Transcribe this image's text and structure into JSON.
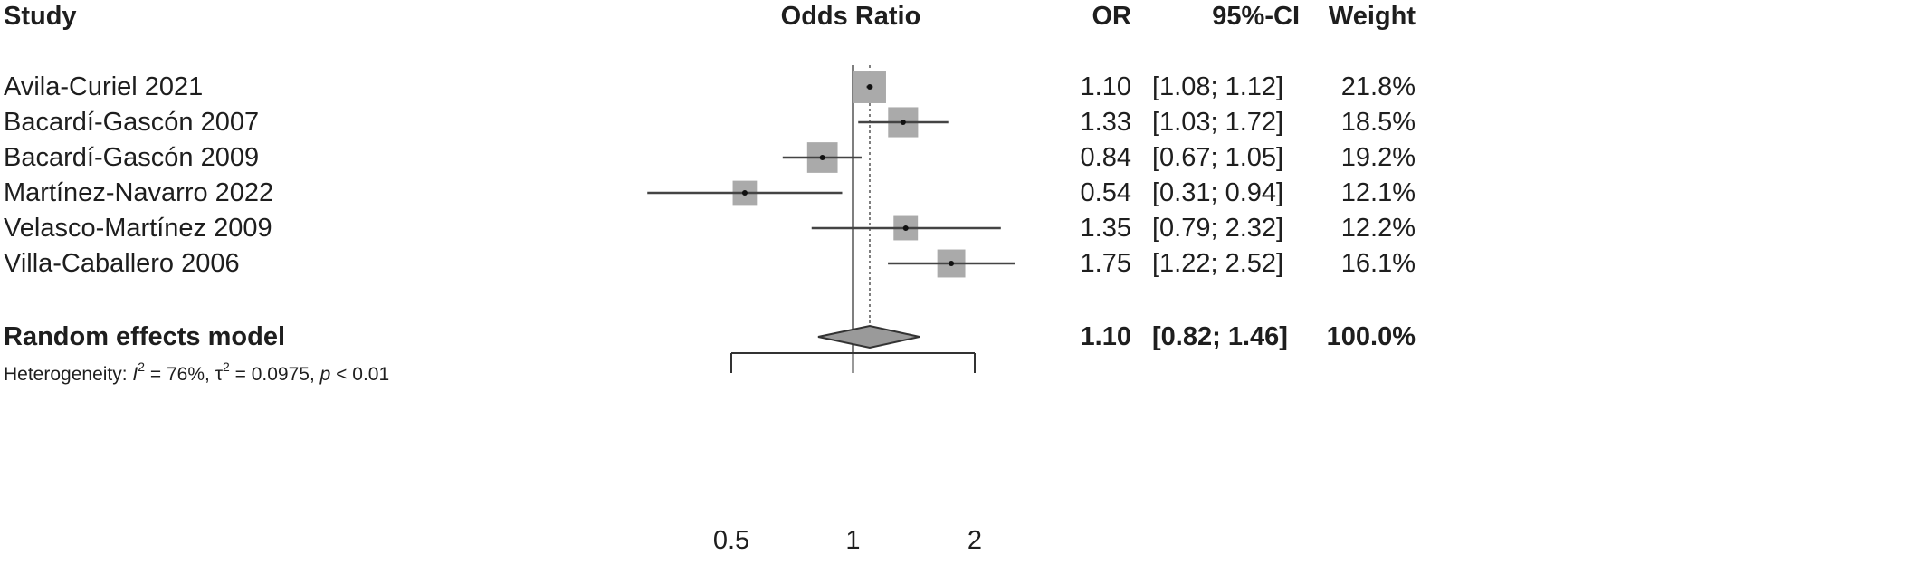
{
  "chart_data": {
    "type": "forest",
    "headers": {
      "study": "Study",
      "plot": "Odds Ratio",
      "or": "OR",
      "ci": "95%-CI",
      "weight": "Weight"
    },
    "categories": [
      "Avila-Curiel 2021",
      "Bacardí-Gascón 2007",
      "Bacardí-Gascón 2009",
      "Martínez-Navarro 2022",
      "Velasco-Martínez 2009",
      "Villa-Caballero 2006"
    ],
    "values": [
      1.1,
      1.33,
      0.84,
      0.54,
      1.35,
      1.75
    ],
    "value_labels": [
      "1.10",
      "1.33",
      "0.84",
      "0.54",
      "1.35",
      "1.75"
    ],
    "lower": [
      1.08,
      1.03,
      0.67,
      0.31,
      0.79,
      1.22
    ],
    "upper": [
      1.12,
      1.72,
      1.05,
      0.94,
      2.32,
      2.52
    ],
    "ci_labels": [
      "[1.08; 1.12]",
      "[1.03; 1.72]",
      "[0.67; 1.05]",
      "[0.31; 0.94]",
      "[0.79; 2.32]",
      "[1.22; 2.52]"
    ],
    "weights": [
      21.8,
      18.5,
      19.2,
      12.1,
      12.2,
      16.1
    ],
    "weight_labels": [
      "21.8%",
      "18.5%",
      "19.2%",
      "12.1%",
      "12.2%",
      "16.1%"
    ],
    "pooled": {
      "name": "Random effects model",
      "value": 1.1,
      "value_label": "1.10",
      "lower": 0.82,
      "upper": 1.46,
      "ci_label": "[0.82; 1.46]",
      "weight": 100,
      "weight_label": "100.0%"
    },
    "heterogeneity": [
      "Heterogeneity: ",
      "I",
      "2",
      " = 76%, τ",
      "2",
      " = 0.0975, ",
      "p",
      " < 0.01"
    ],
    "xlim": [
      0.5,
      2
    ],
    "xticks": [
      0.5,
      1,
      2
    ],
    "log_x": true,
    "ref_line": 1,
    "square_color": "#aaaaaa",
    "line_color": "#444444",
    "diamond_color": "#9a9a9a"
  }
}
